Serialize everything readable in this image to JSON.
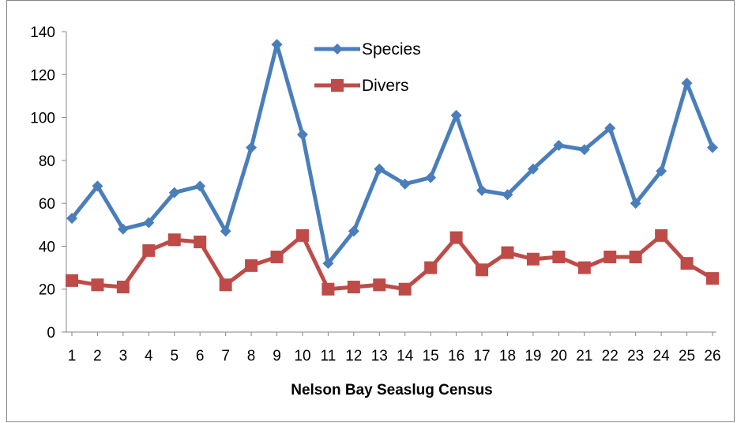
{
  "chart_data": {
    "type": "line",
    "title": "",
    "xlabel": "Nelson Bay Seaslug Census",
    "ylabel": "",
    "categories": [
      "1",
      "2",
      "3",
      "4",
      "5",
      "6",
      "7",
      "8",
      "9",
      "10",
      "11",
      "12",
      "13",
      "14",
      "15",
      "16",
      "17",
      "18",
      "19",
      "20",
      "21",
      "22",
      "23",
      "24",
      "25",
      "26"
    ],
    "ylim": [
      0,
      140
    ],
    "yticks": [
      0,
      20,
      40,
      60,
      80,
      100,
      120,
      140
    ],
    "grid": false,
    "legend_position": "top-center",
    "series": [
      {
        "name": "Species",
        "color": "#4a7ebb",
        "marker": "diamond",
        "values": [
          53,
          68,
          48,
          51,
          65,
          68,
          47,
          86,
          134,
          92,
          32,
          47,
          76,
          69,
          72,
          101,
          66,
          64,
          76,
          87,
          85,
          95,
          60,
          75,
          116,
          86
        ]
      },
      {
        "name": "Divers",
        "color": "#be4b48",
        "marker": "square",
        "values": [
          24,
          22,
          21,
          38,
          43,
          42,
          22,
          31,
          35,
          45,
          20,
          21,
          22,
          20,
          30,
          44,
          29,
          37,
          34,
          35,
          30,
          35,
          35,
          45,
          32,
          25
        ]
      }
    ]
  }
}
